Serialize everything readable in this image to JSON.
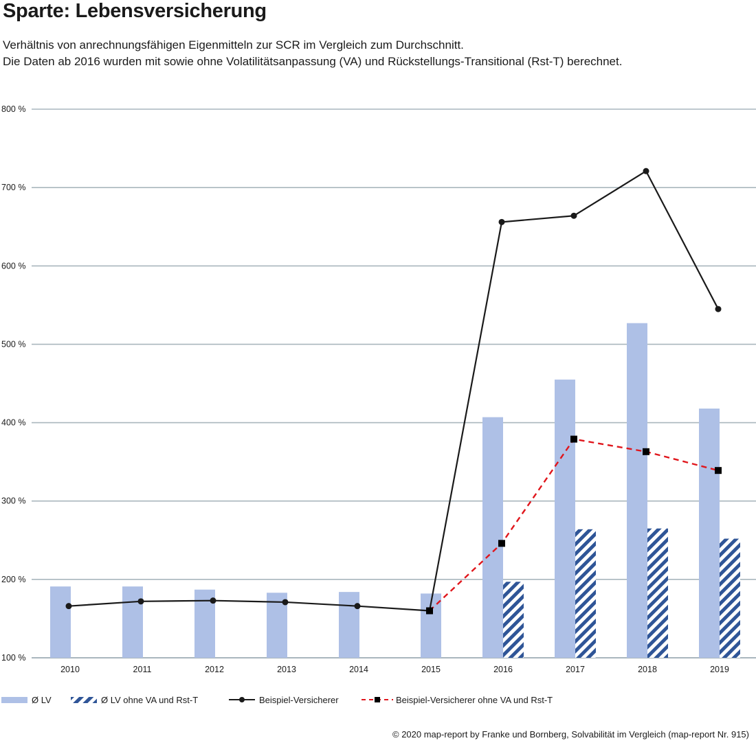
{
  "title": "Sparte: Lebensversicherung",
  "subtitle_1": "Verhältnis von anrechnungsfähigen Eigenmitteln zur SCR im Vergleich zum Durchschnitt.",
  "subtitle_2": "Die Daten ab 2016 wurden mit sowie ohne Volatilitätsanpassung (VA) und Rückstellungs-Transitional (Rst-T) berechnet.",
  "credit": "© 2020 map-report by Franke und Bornberg, Solvabilität im Vergleich (map-report Nr. 915)",
  "colors": {
    "bar": "#aec0e6",
    "hatch": "#2f5597",
    "line_main": "#1a1a1a",
    "line_dashed": "#e0161c",
    "grid": "#a9b6bd"
  },
  "chart_data": {
    "type": "bar",
    "categories": [
      "2010",
      "2011",
      "2012",
      "2013",
      "2014",
      "2015",
      "2016",
      "2017",
      "2018",
      "2019"
    ],
    "ylim": [
      100,
      800
    ],
    "yticks": [
      100,
      200,
      300,
      400,
      500,
      600,
      700,
      800
    ],
    "ytick_labels": [
      "100 %",
      "200 %",
      "300 %",
      "400 %",
      "500 %",
      "600 %",
      "700 %",
      "800 %"
    ],
    "grid": true,
    "legend_position": "bottom",
    "series": [
      {
        "name": "Ø LV",
        "kind": "bar",
        "values": [
          191,
          191,
          187,
          183,
          184,
          182,
          407,
          455,
          527,
          418
        ]
      },
      {
        "name": "Ø LV ohne VA und Rst-T",
        "kind": "bar-hatched",
        "values": [
          null,
          null,
          null,
          null,
          null,
          null,
          197,
          264,
          265,
          252
        ]
      },
      {
        "name": "Beispiel-Versicherer",
        "kind": "line-circle",
        "values": [
          166,
          172,
          173,
          171,
          166,
          160,
          656,
          664,
          721,
          545
        ]
      },
      {
        "name": "Beispiel-Versicherer ohne VA und Rst-T",
        "kind": "line-dashed-square",
        "values": [
          null,
          null,
          null,
          null,
          null,
          160,
          246,
          379,
          363,
          339
        ]
      }
    ]
  }
}
